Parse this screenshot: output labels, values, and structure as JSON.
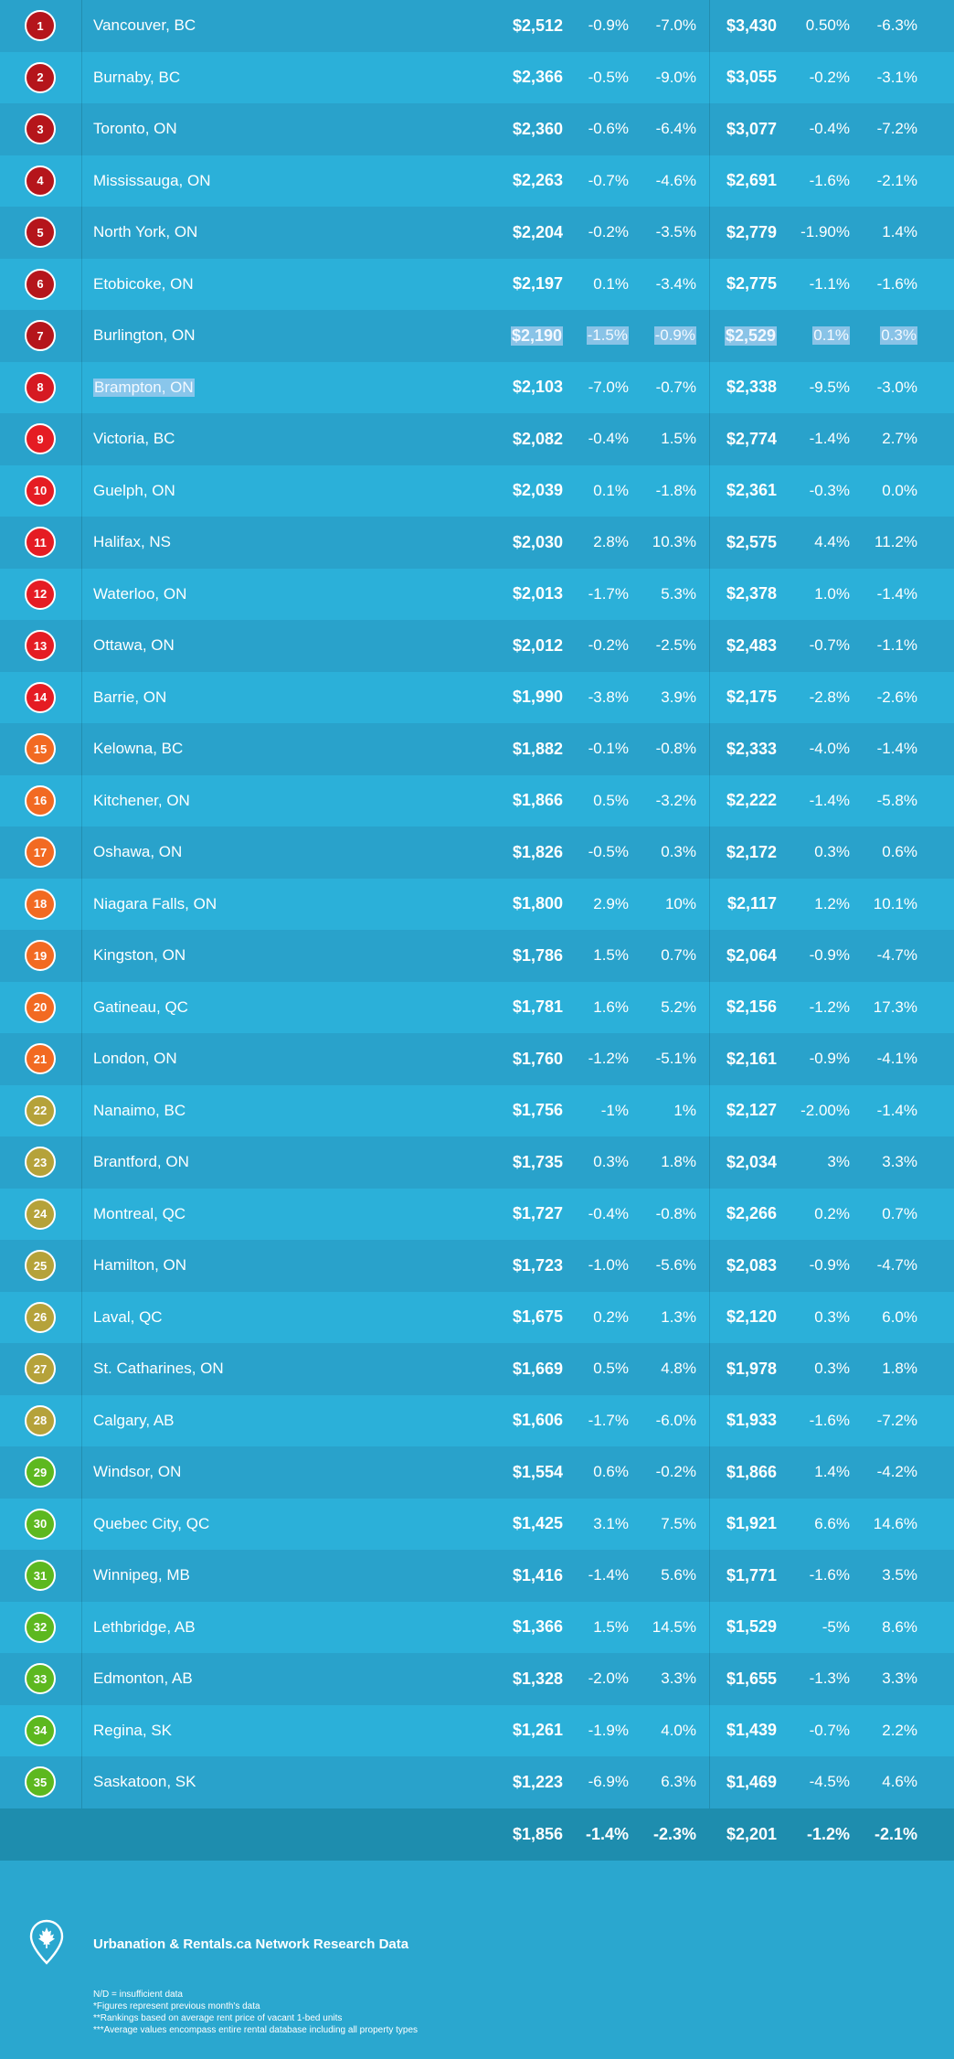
{
  "rows": [
    {
      "rank": "1",
      "city": "Vancouver, BC",
      "c1": "$2,512",
      "c2": "-0.9%",
      "c3": "-7.0%",
      "c4": "$3,430",
      "c5": "0.50%",
      "c6": "-6.3%",
      "color": "#b5151b"
    },
    {
      "rank": "2",
      "city": "Burnaby, BC",
      "c1": "$2,366",
      "c2": "-0.5%",
      "c3": "-9.0%",
      "c4": "$3,055",
      "c5": "-0.2%",
      "c6": "-3.1%",
      "color": "#b5151b"
    },
    {
      "rank": "3",
      "city": "Toronto, ON",
      "c1": "$2,360",
      "c2": "-0.6%",
      "c3": "-6.4%",
      "c4": "$3,077",
      "c5": "-0.4%",
      "c6": "-7.2%",
      "color": "#b5151b"
    },
    {
      "rank": "4",
      "city": "Mississauga, ON",
      "c1": "$2,263",
      "c2": "-0.7%",
      "c3": "-4.6%",
      "c4": "$2,691",
      "c5": "-1.6%",
      "c6": "-2.1%",
      "color": "#b5151b"
    },
    {
      "rank": "5",
      "city": "North York, ON",
      "c1": "$2,204",
      "c2": "-0.2%",
      "c3": "-3.5%",
      "c4": "$2,779",
      "c5": "-1.90%",
      "c6": "1.4%",
      "color": "#b5151b"
    },
    {
      "rank": "6",
      "city": "Etobicoke, ON",
      "c1": "$2,197",
      "c2": "0.1%",
      "c3": "-3.4%",
      "c4": "$2,775",
      "c5": "-1.1%",
      "c6": "-1.6%",
      "color": "#b5151b"
    },
    {
      "rank": "7",
      "city": "Burlington, ON",
      "c1": "$2,190",
      "c2": "-1.5%",
      "c3": "-0.9%",
      "c4": "$2,529",
      "c5": "0.1%",
      "c6": "0.3%",
      "color": "#b5151b",
      "hl_values": true
    },
    {
      "rank": "8",
      "city": "Brampton, ON",
      "c1": "$2,103",
      "c2": "-7.0%",
      "c3": "-0.7%",
      "c4": "$2,338",
      "c5": "-9.5%",
      "c6": "-3.0%",
      "color": "#d61a22",
      "hl_city": true
    },
    {
      "rank": "9",
      "city": "Victoria, BC",
      "c1": "$2,082",
      "c2": "-0.4%",
      "c3": "1.5%",
      "c4": "$2,774",
      "c5": "-1.4%",
      "c6": "2.7%",
      "color": "#e51c23"
    },
    {
      "rank": "10",
      "city": "Guelph, ON",
      "c1": "$2,039",
      "c2": "0.1%",
      "c3": "-1.8%",
      "c4": "$2,361",
      "c5": "-0.3%",
      "c6": "0.0%",
      "color": "#e51c23"
    },
    {
      "rank": "11",
      "city": "Halifax, NS",
      "c1": "$2,030",
      "c2": "2.8%",
      "c3": "10.3%",
      "c4": "$2,575",
      "c5": "4.4%",
      "c6": "11.2%",
      "color": "#e51c23"
    },
    {
      "rank": "12",
      "city": "Waterloo, ON",
      "c1": "$2,013",
      "c2": "-1.7%",
      "c3": "5.3%",
      "c4": "$2,378",
      "c5": "1.0%",
      "c6": "-1.4%",
      "color": "#e51c23"
    },
    {
      "rank": "13",
      "city": "Ottawa, ON",
      "c1": "$2,012",
      "c2": "-0.2%",
      "c3": "-2.5%",
      "c4": "$2,483",
      "c5": "-0.7%",
      "c6": "-1.1%",
      "color": "#e51c23"
    },
    {
      "rank": "14",
      "city": "Barrie, ON",
      "c1": "$1,990",
      "c2": "-3.8%",
      "c3": "3.9%",
      "c4": "$2,175",
      "c5": "-2.8%",
      "c6": "-2.6%",
      "color": "#e51c23"
    },
    {
      "rank": "15",
      "city": "Kelowna, BC",
      "c1": "$1,882",
      "c2": "-0.1%",
      "c3": "-0.8%",
      "c4": "$2,333",
      "c5": "-4.0%",
      "c6": "-1.4%",
      "color": "#f26a22"
    },
    {
      "rank": "16",
      "city": "Kitchener, ON",
      "c1": "$1,866",
      "c2": "0.5%",
      "c3": "-3.2%",
      "c4": "$2,222",
      "c5": "-1.4%",
      "c6": "-5.8%",
      "color": "#f26a22"
    },
    {
      "rank": "17",
      "city": "Oshawa, ON",
      "c1": "$1,826",
      "c2": "-0.5%",
      "c3": "0.3%",
      "c4": "$2,172",
      "c5": "0.3%",
      "c6": "0.6%",
      "color": "#f26a22"
    },
    {
      "rank": "18",
      "city": "Niagara Falls, ON",
      "c1": "$1,800",
      "c2": "2.9%",
      "c3": "10%",
      "c4": "$2,117",
      "c5": "1.2%",
      "c6": "10.1%",
      "color": "#f26a22"
    },
    {
      "rank": "19",
      "city": "Kingston, ON",
      "c1": "$1,786",
      "c2": "1.5%",
      "c3": "0.7%",
      "c4": "$2,064",
      "c5": "-0.9%",
      "c6": "-4.7%",
      "color": "#f26a22"
    },
    {
      "rank": "20",
      "city": "Gatineau, QC",
      "c1": "$1,781",
      "c2": "1.6%",
      "c3": "5.2%",
      "c4": "$2,156",
      "c5": "-1.2%",
      "c6": "17.3%",
      "color": "#f26a22"
    },
    {
      "rank": "21",
      "city": "London, ON",
      "c1": "$1,760",
      "c2": "-1.2%",
      "c3": "-5.1%",
      "c4": "$2,161",
      "c5": "-0.9%",
      "c6": "-4.1%",
      "color": "#f26a22"
    },
    {
      "rank": "22",
      "city": "Nanaimo, BC",
      "c1": "$1,756",
      "c2": "-1%",
      "c3": "1%",
      "c4": "$2,127",
      "c5": "-2.00%",
      "c6": "-1.4%",
      "color": "#b5a23a"
    },
    {
      "rank": "23",
      "city": "Brantford, ON",
      "c1": "$1,735",
      "c2": "0.3%",
      "c3": "1.8%",
      "c4": "$2,034",
      "c5": "3%",
      "c6": "3.3%",
      "color": "#b5a23a"
    },
    {
      "rank": "24",
      "city": "Montreal, QC",
      "c1": "$1,727",
      "c2": "-0.4%",
      "c3": "-0.8%",
      "c4": "$2,266",
      "c5": "0.2%",
      "c6": "0.7%",
      "color": "#b5a23a"
    },
    {
      "rank": "25",
      "city": "Hamilton, ON",
      "c1": "$1,723",
      "c2": "-1.0%",
      "c3": "-5.6%",
      "c4": "$2,083",
      "c5": "-0.9%",
      "c6": "-4.7%",
      "color": "#b5a23a"
    },
    {
      "rank": "26",
      "city": "Laval, QC",
      "c1": "$1,675",
      "c2": "0.2%",
      "c3": "1.3%",
      "c4": "$2,120",
      "c5": "0.3%",
      "c6": "6.0%",
      "color": "#b5a23a"
    },
    {
      "rank": "27",
      "city": "St. Catharines, ON",
      "c1": "$1,669",
      "c2": "0.5%",
      "c3": "4.8%",
      "c4": "$1,978",
      "c5": "0.3%",
      "c6": "1.8%",
      "color": "#b5a23a"
    },
    {
      "rank": "28",
      "city": "Calgary, AB",
      "c1": "$1,606",
      "c2": "-1.7%",
      "c3": "-6.0%",
      "c4": "$1,933",
      "c5": "-1.6%",
      "c6": "-7.2%",
      "color": "#b5a23a"
    },
    {
      "rank": "29",
      "city": "Windsor, ON",
      "c1": "$1,554",
      "c2": "0.6%",
      "c3": "-0.2%",
      "c4": "$1,866",
      "c5": "1.4%",
      "c6": "-4.2%",
      "color": "#5db81f"
    },
    {
      "rank": "30",
      "city": "Quebec City, QC",
      "c1": "$1,425",
      "c2": "3.1%",
      "c3": "7.5%",
      "c4": "$1,921",
      "c5": "6.6%",
      "c6": "14.6%",
      "color": "#5db81f"
    },
    {
      "rank": "31",
      "city": "Winnipeg, MB",
      "c1": "$1,416",
      "c2": "-1.4%",
      "c3": "5.6%",
      "c4": "$1,771",
      "c5": "-1.6%",
      "c6": "3.5%",
      "color": "#5db81f"
    },
    {
      "rank": "32",
      "city": "Lethbridge, AB",
      "c1": "$1,366",
      "c2": "1.5%",
      "c3": "14.5%",
      "c4": "$1,529",
      "c5": "-5%",
      "c6": "8.6%",
      "color": "#5db81f"
    },
    {
      "rank": "33",
      "city": "Edmonton, AB",
      "c1": "$1,328",
      "c2": "-2.0%",
      "c3": "3.3%",
      "c4": "$1,655",
      "c5": "-1.3%",
      "c6": "3.3%",
      "color": "#5db81f"
    },
    {
      "rank": "34",
      "city": "Regina, SK",
      "c1": "$1,261",
      "c2": "-1.9%",
      "c3": "4.0%",
      "c4": "$1,439",
      "c5": "-0.7%",
      "c6": "2.2%",
      "color": "#5db81f"
    },
    {
      "rank": "35",
      "city": "Saskatoon, SK",
      "c1": "$1,223",
      "c2": "-6.9%",
      "c3": "6.3%",
      "c4": "$1,469",
      "c5": "-4.5%",
      "c6": "4.6%",
      "color": "#5db81f"
    }
  ],
  "totals": {
    "c1": "$1,856",
    "c2": "-1.4%",
    "c3": "-2.3%",
    "c4": "$2,201",
    "c5": "-1.2%",
    "c6": "-2.1%"
  },
  "footer": {
    "icon": "maple-leaf-pin-icon",
    "title": "Urbanation & Rentals.ca Network Research Data",
    "notes": [
      "N/D = insufficient data",
      "*Figures represent previous month's data",
      "**Rankings based on average rent price of vacant 1-bed units",
      "***Average values encompass entire rental database including all property types"
    ]
  },
  "colors": {
    "row_odd": "#29a2cb",
    "row_even": "#2bb0d9",
    "total_row": "#1e8dae",
    "badge_dark_red": "#b5151b",
    "badge_red": "#e51c23",
    "badge_orange": "#f26a22",
    "badge_olive": "#b5a23a",
    "badge_green": "#5db81f",
    "selection_highlight": "#aacdf0"
  }
}
